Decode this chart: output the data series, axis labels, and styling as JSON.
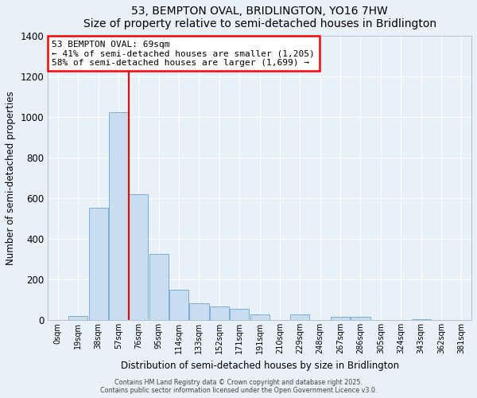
{
  "title": "53, BEMPTON OVAL, BRIDLINGTON, YO16 7HW",
  "subtitle": "Size of property relative to semi-detached houses in Bridlington",
  "xlabel": "Distribution of semi-detached houses by size in Bridlington",
  "ylabel": "Number of semi-detached properties",
  "bar_labels": [
    "0sqm",
    "19sqm",
    "38sqm",
    "57sqm",
    "76sqm",
    "95sqm",
    "114sqm",
    "133sqm",
    "152sqm",
    "171sqm",
    "191sqm",
    "210sqm",
    "229sqm",
    "248sqm",
    "267sqm",
    "286sqm",
    "305sqm",
    "324sqm",
    "343sqm",
    "362sqm",
    "381sqm"
  ],
  "bar_values": [
    0,
    20,
    555,
    1025,
    620,
    325,
    148,
    82,
    68,
    55,
    27,
    0,
    27,
    0,
    15,
    15,
    0,
    0,
    5,
    0,
    0
  ],
  "bar_color": "#c9ddf0",
  "bar_edge_color": "#7aafd4",
  "property_line_x": 3.5,
  "property_line_color": "red",
  "annotation_title": "53 BEMPTON OVAL: 69sqm",
  "annotation_line1": "← 41% of semi-detached houses are smaller (1,205)",
  "annotation_line2": "58% of semi-detached houses are larger (1,699) →",
  "annotation_box_color": "white",
  "annotation_box_edge": "red",
  "ylim": [
    0,
    1400
  ],
  "yticks": [
    0,
    200,
    400,
    600,
    800,
    1000,
    1200,
    1400
  ],
  "background_color": "#e8f0f8",
  "grid_color": "#ffffff",
  "footer_line1": "Contains HM Land Registry data © Crown copyright and database right 2025.",
  "footer_line2": "Contains public sector information licensed under the Open Government Licence v3.0."
}
